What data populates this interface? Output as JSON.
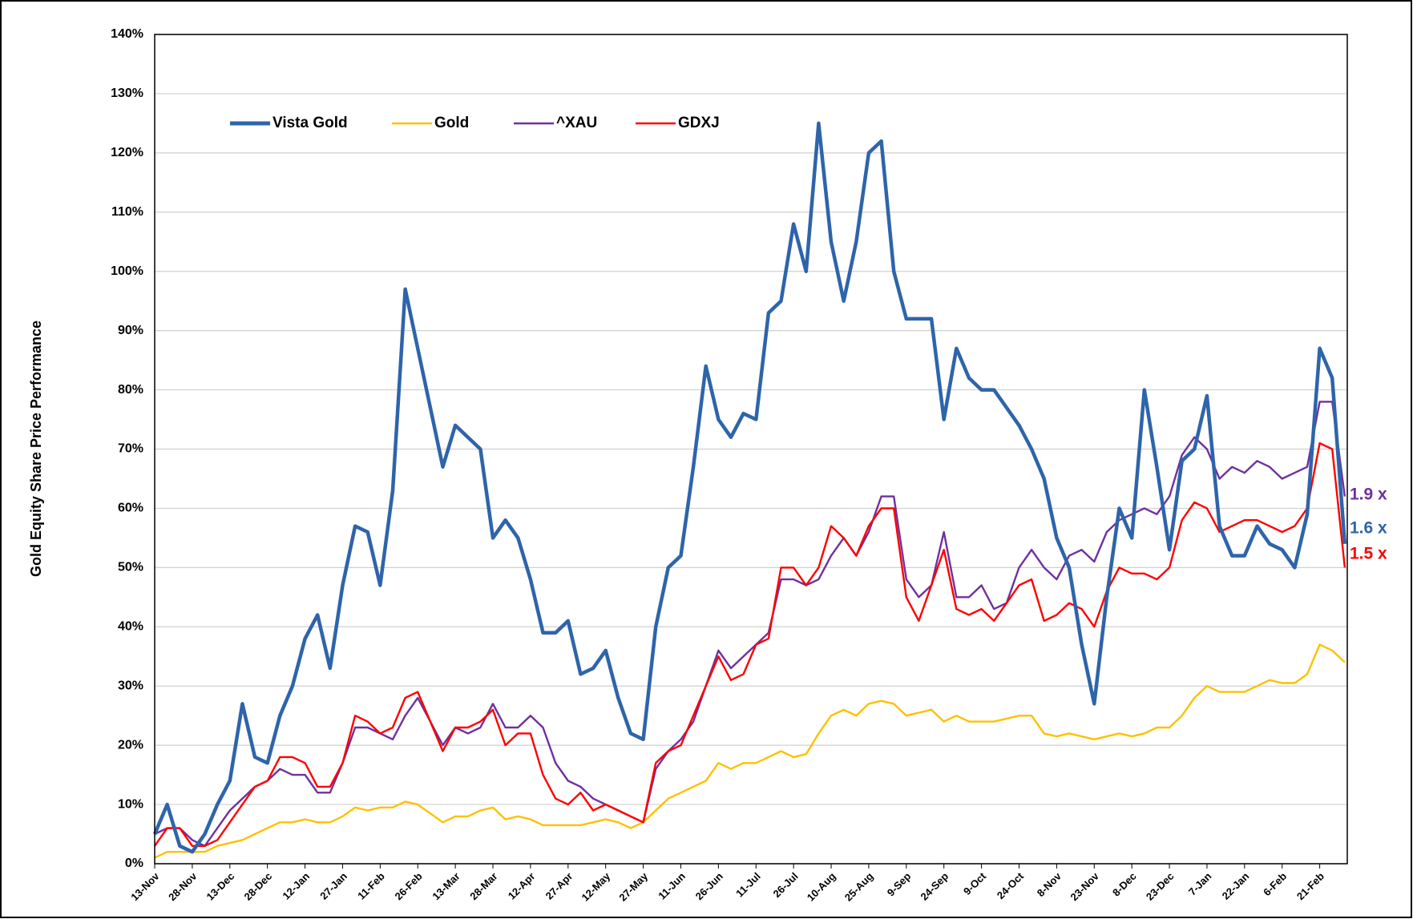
{
  "chart_data": {
    "type": "line",
    "y_label": "Gold Equity Share Price Performance",
    "categories": [
      "13-Nov",
      null,
      null,
      "28-Nov",
      null,
      null,
      "13-Dec",
      null,
      null,
      "28-Dec",
      null,
      null,
      "12-Jan",
      null,
      null,
      "27-Jan",
      null,
      null,
      "11-Feb",
      null,
      null,
      "26-Feb",
      null,
      null,
      "13-Mar",
      null,
      null,
      "28-Mar",
      null,
      null,
      "12-Apr",
      null,
      null,
      "27-Apr",
      null,
      null,
      "12-May",
      null,
      null,
      "27-May",
      null,
      null,
      "11-Jun",
      null,
      null,
      "26-Jun",
      null,
      null,
      "11-Jul",
      null,
      null,
      "26-Jul",
      null,
      null,
      "10-Aug",
      null,
      null,
      "25-Aug",
      null,
      null,
      "9-Sep",
      null,
      null,
      "24-Sep",
      null,
      null,
      "9-Oct",
      null,
      null,
      "24-Oct",
      null,
      null,
      "8-Nov",
      null,
      null,
      "23-Nov",
      null,
      null,
      "8-Dec",
      null,
      null,
      "23-Dec",
      null,
      null,
      "7-Jan",
      null,
      null,
      "22-Jan",
      null,
      null,
      "6-Feb",
      null,
      null,
      "21-Feb",
      null,
      null
    ],
    "series": [
      {
        "name": "Vista Gold",
        "color": "#2e64aa",
        "values": [
          5,
          10,
          3,
          2,
          5,
          10,
          14,
          27,
          18,
          17,
          25,
          30,
          38,
          42,
          33,
          47,
          57,
          56,
          47,
          63,
          97,
          87,
          77,
          67,
          74,
          72,
          70,
          55,
          58,
          55,
          48,
          39,
          39,
          41,
          32,
          33,
          36,
          28,
          22,
          21,
          40,
          50,
          52,
          67,
          84,
          75,
          72,
          76,
          75,
          93,
          95,
          108,
          100,
          125,
          105,
          95,
          105,
          120,
          122,
          100,
          92,
          92,
          92,
          75,
          87,
          82,
          80,
          80,
          77,
          74,
          70,
          65,
          55,
          50,
          37,
          27,
          45,
          60,
          55,
          80,
          67,
          53,
          68,
          70,
          79,
          57,
          52,
          52,
          57,
          54,
          53,
          50,
          59,
          87,
          82,
          54
        ]
      },
      {
        "name": "Gold",
        "color": "#ffc000",
        "values": [
          1,
          2,
          2,
          2,
          2,
          3,
          3.5,
          4,
          5,
          6,
          7,
          7,
          7.5,
          7,
          7,
          8,
          9.5,
          9,
          9.5,
          9.5,
          10.5,
          10,
          8.5,
          7,
          8,
          8,
          9,
          9.5,
          7.5,
          8,
          7.5,
          6.5,
          6.5,
          6.5,
          6.5,
          7,
          7.5,
          7,
          6,
          7,
          9,
          11,
          12,
          13,
          14,
          17,
          16,
          17,
          17,
          18,
          19,
          18,
          18.5,
          22,
          25,
          26,
          25,
          27,
          27.5,
          27,
          25,
          25.5,
          26,
          24,
          25,
          24,
          24,
          24,
          24.5,
          25,
          25,
          22,
          21.5,
          22,
          21.5,
          21,
          21.5,
          22,
          21.5,
          22,
          23,
          23,
          25,
          28,
          30,
          29,
          29,
          29,
          30,
          31,
          30.5,
          30.5,
          32,
          37,
          36,
          34
        ]
      },
      {
        "name": "^XAU",
        "color": "#7030a0",
        "values": [
          5,
          6,
          6,
          4,
          3,
          6,
          9,
          11,
          13,
          14,
          16,
          15,
          15,
          12,
          12,
          17,
          23,
          23,
          22,
          21,
          25,
          28,
          24,
          20,
          23,
          22,
          23,
          27,
          23,
          23,
          25,
          23,
          17,
          14,
          13,
          11,
          10,
          9,
          8,
          7,
          16,
          19,
          21,
          24,
          30,
          36,
          33,
          35,
          37,
          39,
          48,
          48,
          47,
          48,
          52,
          55,
          52,
          56,
          62,
          62,
          48,
          45,
          47,
          56,
          45,
          45,
          47,
          43,
          44,
          50,
          53,
          50,
          48,
          52,
          53,
          51,
          56,
          58,
          59,
          60,
          59,
          62,
          69,
          72,
          70,
          65,
          67,
          66,
          68,
          67,
          65,
          66,
          67,
          78,
          78,
          62
        ]
      },
      {
        "name": "GDXJ",
        "color": "#ff0000",
        "values": [
          3,
          6,
          6,
          3,
          3,
          4,
          7,
          10,
          13,
          14,
          18,
          18,
          17,
          13,
          13,
          17,
          25,
          24,
          22,
          23,
          28,
          29,
          24,
          19,
          23,
          23,
          24,
          26,
          20,
          22,
          22,
          15,
          11,
          10,
          12,
          9,
          10,
          9,
          8,
          7,
          17,
          19,
          20,
          25,
          30,
          35,
          31,
          32,
          37,
          38,
          50,
          50,
          47,
          50,
          57,
          55,
          52,
          57,
          60,
          60,
          45,
          41,
          47,
          53,
          43,
          42,
          43,
          41,
          44,
          47,
          48,
          41,
          42,
          44,
          43,
          40,
          46,
          50,
          49,
          49,
          48,
          50,
          58,
          61,
          60,
          56,
          57,
          58,
          58,
          57,
          56,
          57,
          60,
          71,
          70,
          50
        ]
      }
    ],
    "annotations": [
      {
        "text": "1.9 x",
        "color": "#7030a0"
      },
      {
        "text": "1.6 x",
        "color": "#2e64aa"
      },
      {
        "text": "1.5 x",
        "color": "#ff0000"
      }
    ],
    "ylim": [
      0,
      140
    ],
    "yticks": [
      {
        "value": 0,
        "label": "0%"
      },
      {
        "value": 10,
        "label": "10%"
      },
      {
        "value": 20,
        "label": "20%"
      },
      {
        "value": 30,
        "label": "30%"
      },
      {
        "value": 40,
        "label": "40%"
      },
      {
        "value": 50,
        "label": "50%"
      },
      {
        "value": 60,
        "label": "60%"
      },
      {
        "value": 70,
        "label": "70%"
      },
      {
        "value": 80,
        "label": "80%"
      },
      {
        "value": 90,
        "label": "90%"
      },
      {
        "value": 100,
        "label": "100%"
      },
      {
        "value": 110,
        "label": "110%"
      },
      {
        "value": 120,
        "label": "120%"
      },
      {
        "value": 130,
        "label": "130%"
      },
      {
        "value": 140,
        "label": "140%"
      }
    ],
    "grid": true,
    "legend": "top-left"
  }
}
